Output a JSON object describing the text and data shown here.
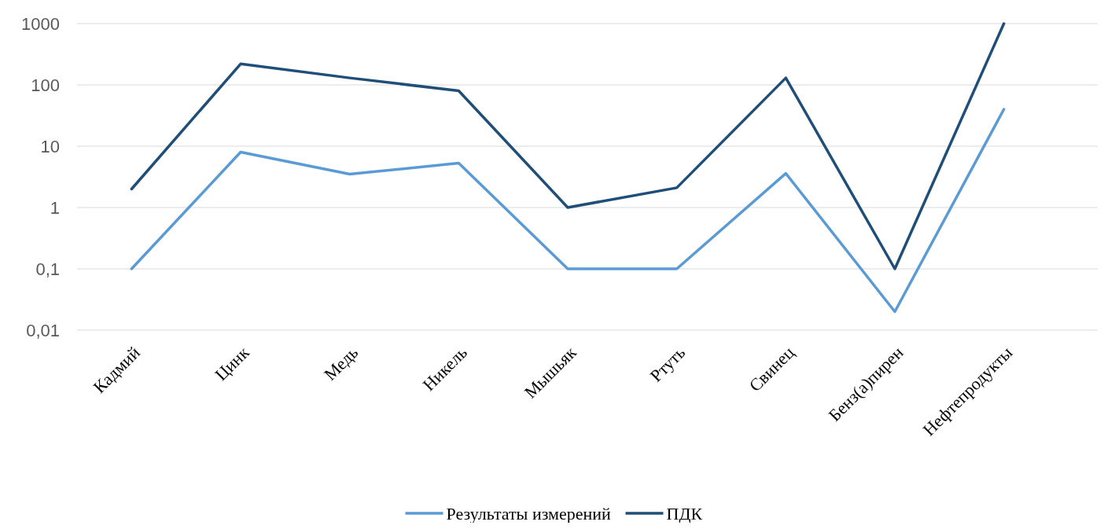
{
  "chart_data": {
    "type": "line",
    "categories": [
      "Кадмий",
      "Цинк",
      "Медь",
      "Никель",
      "Мышьяк",
      "Ртуть",
      "Свинец",
      "Бенз(а)пирен",
      "Нефтепродукты"
    ],
    "series": [
      {
        "name": "Результаты измерений",
        "color": "#5b9bd5",
        "values": [
          0.1,
          8,
          3.5,
          5.3,
          0.1,
          0.1,
          3.6,
          0.02,
          40
        ]
      },
      {
        "name": "ПДК",
        "color": "#1f4e79",
        "values": [
          2,
          220,
          130,
          80,
          1,
          2.1,
          130,
          0.1,
          1000
        ]
      }
    ],
    "log": true,
    "ylim": [
      0.01,
      1000
    ],
    "yticks": [
      {
        "value": 0.01,
        "label": "0,01"
      },
      {
        "value": 0.1,
        "label": "0,1"
      },
      1,
      10,
      100,
      1000
    ],
    "grid": "y",
    "legend": "bottom",
    "marker": "none",
    "line_style": "solid"
  }
}
